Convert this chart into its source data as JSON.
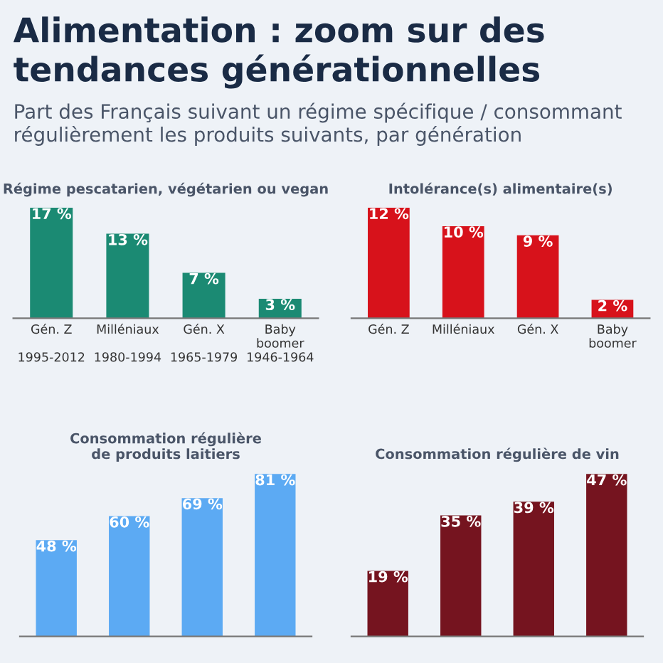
{
  "chart_data": [
    {
      "type": "other",
      "title": "Alimentation : zoom sur des tendances générationnelles",
      "subtitle": "Part des Français suivant un régime spécifique / consommant régulièrement les produits suivants, par génération"
    },
    {
      "type": "bar",
      "title": "Régime pescatarien, végétarien ou vegan",
      "categories": [
        "Gén. Z\n\n1995-2012",
        "Milléniaux\n\n1980-1994",
        "Gén. X\n\n1965-1979",
        "Baby\nboomer\n1946-1964"
      ],
      "values": [
        17,
        13,
        7,
        3
      ],
      "value_labels": [
        "17 %",
        "13 %",
        "7 %",
        "3 %"
      ],
      "color": "#1b8a73"
    },
    {
      "type": "bar",
      "title": "Intolérance(s) alimentaire(s)",
      "categories": [
        "Gén. Z",
        "Milléniaux",
        "Gén. X",
        "Baby\nboomer"
      ],
      "values": [
        12,
        10,
        9,
        2
      ],
      "value_labels": [
        "12 %",
        "10 %",
        "9 %",
        "2 %"
      ],
      "color": "#d7121b"
    },
    {
      "type": "bar",
      "title": "Consommation régulière\nde produits laitiers",
      "categories": [
        null,
        null,
        null,
        null
      ],
      "values": [
        48,
        60,
        69,
        81
      ],
      "value_labels": [
        "48 %",
        "60 %",
        "69 %",
        "81 %"
      ],
      "color": "#5caaf3"
    },
    {
      "type": "bar",
      "title": "Consommation régulière de vin",
      "categories": [
        null,
        null,
        null,
        null
      ],
      "values": [
        19,
        35,
        39,
        47
      ],
      "value_labels": [
        "19 %",
        "35 %",
        "39 %",
        "47 %"
      ],
      "color": "#75141f"
    }
  ]
}
